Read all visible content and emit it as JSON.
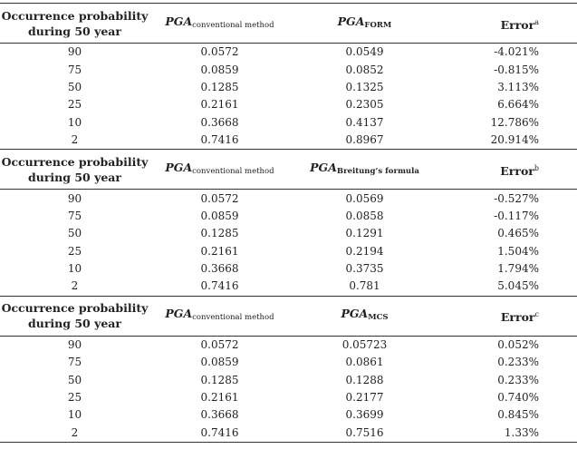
{
  "sections": [
    {
      "header": {
        "col1_line1": "Occurrence probability",
        "col1_line2": "during 50 year",
        "col2_main": "PGA",
        "col2_sub": "conventional method",
        "col3_main": "PGA",
        "col3_sub": "FORM",
        "col4_main": "Error",
        "col4_sup": "a"
      },
      "rows": [
        [
          "90",
          "0.0572",
          "0.0549",
          "-4.021%"
        ],
        [
          "75",
          "0.0859",
          "0.0852",
          "-0.815%"
        ],
        [
          "50",
          "0.1285",
          "0.1325",
          "3.113%"
        ],
        [
          "25",
          "0.2161",
          "0.2305",
          "6.664%"
        ],
        [
          "10",
          "0.3668",
          "0.4137",
          "12.786%"
        ],
        [
          "2",
          "0.7416",
          "0.8967",
          "20.914%"
        ]
      ]
    },
    {
      "header": {
        "col1_line1": "Occurrence probability",
        "col1_line2": "during 50 year",
        "col2_main": "PGA",
        "col2_sub": "conventional method",
        "col3_main": "PGA",
        "col3_sub": "Breitung’s formula",
        "col4_main": "Error",
        "col4_sup": "b"
      },
      "rows": [
        [
          "90",
          "0.0572",
          "0.0569",
          "-0.527%"
        ],
        [
          "75",
          "0.0859",
          "0.0858",
          "-0.117%"
        ],
        [
          "50",
          "0.1285",
          "0.1291",
          "0.465%"
        ],
        [
          "25",
          "0.2161",
          "0.2194",
          "1.504%"
        ],
        [
          "10",
          "0.3668",
          "0.3735",
          "1.794%"
        ],
        [
          "2",
          "0.7416",
          "0.781",
          "5.045%"
        ]
      ]
    },
    {
      "header": {
        "col1_line1": "Occurrence probability",
        "col1_line2": "during 50 year",
        "col2_main": "PGA",
        "col2_sub": "conventional method",
        "col3_main": "PGA",
        "col3_sub": "MCS",
        "col4_main": "Error",
        "col4_sup": "c"
      },
      "rows": [
        [
          "90",
          "0.0572",
          "0.05723",
          "0.052%"
        ],
        [
          "75",
          "0.0859",
          "0.0861",
          "0.233%"
        ],
        [
          "50",
          "0.1285",
          "0.1288",
          "0.233%"
        ],
        [
          "25",
          "0.2161",
          "0.2177",
          "0.740%"
        ],
        [
          "10",
          "0.3668",
          "0.3699",
          "0.845%"
        ],
        [
          "2",
          "0.7416",
          "0.7516",
          "1.33%"
        ]
      ]
    }
  ]
}
